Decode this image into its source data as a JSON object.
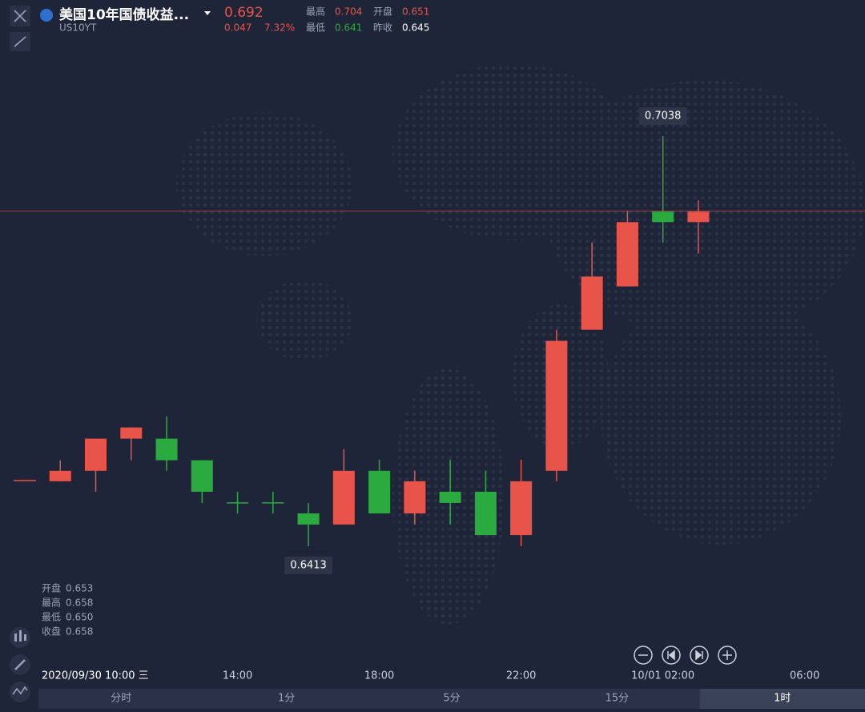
{
  "header": {
    "title": "美国10年国债收益...",
    "code": "US10YT",
    "price": "0.692",
    "change": "0.047",
    "change_pct": "7.32%",
    "stats": [
      {
        "label": "最高",
        "value": "0.704"
      },
      {
        "label": "开盘",
        "value": "0.651"
      },
      {
        "label": "最低",
        "value": "0.641"
      },
      {
        "label": "昨收",
        "value": "0.645"
      }
    ]
  },
  "cursor_info": [
    {
      "label": "开盘",
      "value": "0.653"
    },
    {
      "label": "最高",
      "value": "0.658"
    },
    {
      "label": "最低",
      "value": "0.650"
    },
    {
      "label": "收盘",
      "value": "0.658"
    }
  ],
  "tabs": [
    "分时",
    "1分",
    "5分",
    "15分",
    "1时"
  ],
  "chart_data": {
    "type": "candlestick",
    "categories": [
      null,
      null,
      null,
      null,
      null,
      null,
      "14:00",
      null,
      null,
      null,
      "18:00",
      null,
      null,
      null,
      "22:00",
      null,
      null,
      null,
      "10/01 02:00",
      null,
      null,
      null,
      "06:00"
    ],
    "open": [
      0.6513,
      0.6512,
      0.6528,
      0.6577,
      0.6577,
      0.6544,
      0.6479,
      0.6479,
      0.6463,
      0.6446,
      0.6528,
      0.6463,
      0.6496,
      0.6496,
      0.643,
      0.6528,
      0.6743,
      0.6809,
      0.6923,
      0.6907,
      null,
      null,
      null
    ],
    "high": [
      0.6513,
      0.6544,
      0.6577,
      0.6594,
      0.6611,
      0.6544,
      0.6496,
      0.6496,
      0.6479,
      0.6561,
      0.6545,
      0.6528,
      0.6545,
      0.6528,
      0.6545,
      0.6743,
      0.6876,
      0.6924,
      0.7038,
      0.694,
      null,
      null,
      null
    ],
    "low": [
      0.6513,
      0.6512,
      0.6496,
      0.6544,
      0.6528,
      0.6479,
      0.6463,
      0.6463,
      0.6413,
      0.6446,
      0.6463,
      0.6446,
      0.6446,
      0.643,
      0.6413,
      0.6512,
      0.6743,
      0.6809,
      0.6876,
      0.6859,
      null,
      null,
      null
    ],
    "close": [
      0.6513,
      0.6528,
      0.6577,
      0.6594,
      0.6544,
      0.6496,
      0.6479,
      0.6479,
      0.6446,
      0.6528,
      0.6463,
      0.6512,
      0.6479,
      0.643,
      0.6512,
      0.6726,
      0.6824,
      0.6907,
      0.6907,
      0.6923,
      null,
      null,
      null
    ],
    "up_color": "#e8534a",
    "down_color": "#2bab3f",
    "ylim": [
      0.635,
      0.72
    ],
    "last_price": 0.6924,
    "max_label": "0.7038",
    "min_label": "0.6413",
    "cursor_label": "2020/09/30 10:00 三"
  }
}
